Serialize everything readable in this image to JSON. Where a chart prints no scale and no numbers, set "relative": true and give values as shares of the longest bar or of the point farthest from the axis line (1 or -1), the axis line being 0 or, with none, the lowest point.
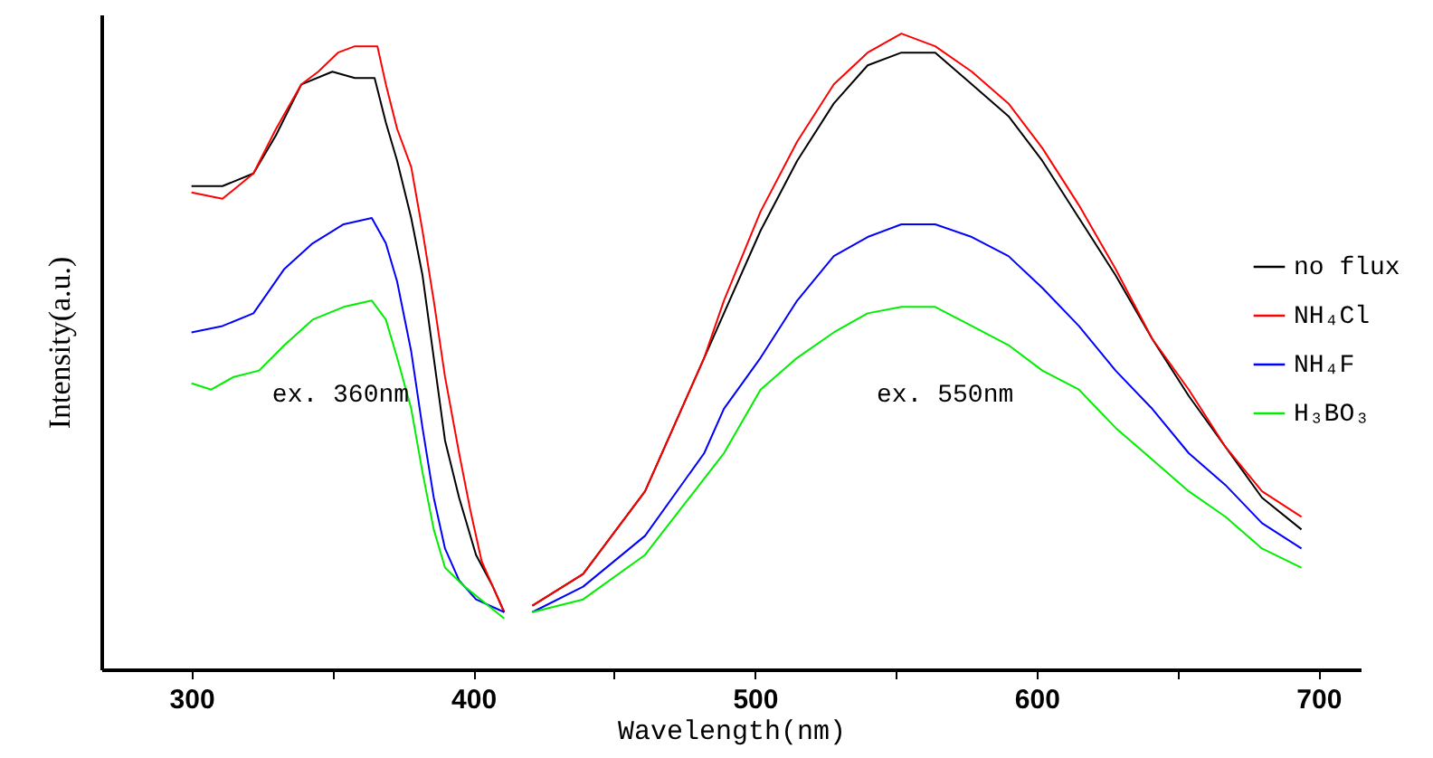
{
  "chart_data": {
    "type": "line",
    "relative": true,
    "xlabel": "Wavelength(nm)",
    "ylabel": "Intensity(a.u.)",
    "xlim": [
      268,
      715
    ],
    "xticks": [
      300,
      {
        "value": 350,
        "label": null
      },
      400,
      {
        "value": 450,
        "label": null
      },
      500,
      {
        "value": 550,
        "label": null
      },
      600,
      {
        "value": 650,
        "label": null
      },
      700
    ],
    "legend": "right",
    "grid": false,
    "marker": "none",
    "line_style": "solid",
    "annotations": [
      "ex. 360nm",
      "ex. 550nm"
    ],
    "series": [
      {
        "name": "no flux",
        "color": "#000000",
        "x": [
          300,
          311,
          322,
          330,
          339,
          350,
          358,
          365,
          369,
          373,
          378,
          382,
          386,
          390,
          395,
          401,
          407,
          411,
          416,
          421,
          439,
          461,
          482,
          489,
          502,
          515,
          528,
          540,
          552,
          564,
          577,
          590,
          602,
          615,
          628,
          641,
          654,
          667,
          680,
          694
        ],
        "values": [
          0.76,
          0.76,
          0.78,
          0.84,
          0.92,
          0.94,
          0.93,
          0.93,
          0.86,
          0.8,
          0.71,
          0.62,
          0.49,
          0.36,
          0.27,
          0.18,
          0.13,
          0.09,
          null,
          0.1,
          0.15,
          0.28,
          0.49,
          0.56,
          0.69,
          0.8,
          0.89,
          0.95,
          0.97,
          0.97,
          0.92,
          0.87,
          0.8,
          0.71,
          0.62,
          0.52,
          0.43,
          0.35,
          0.27,
          0.22
        ]
      },
      {
        "name": "NH₄Cl",
        "color": "#ff0000",
        "x": [
          300,
          311,
          322,
          330,
          339,
          345,
          352,
          358,
          366,
          369,
          373,
          378,
          382,
          386,
          390,
          395,
          399,
          403,
          407,
          411,
          416,
          421,
          439,
          461,
          482,
          489,
          502,
          515,
          528,
          540,
          552,
          564,
          577,
          590,
          602,
          615,
          628,
          641,
          654,
          667,
          680,
          694
        ],
        "values": [
          0.75,
          0.74,
          0.78,
          0.85,
          0.92,
          0.94,
          0.97,
          0.98,
          0.98,
          0.92,
          0.85,
          0.79,
          0.69,
          0.58,
          0.46,
          0.34,
          0.25,
          0.17,
          0.13,
          0.09,
          null,
          0.1,
          0.15,
          0.28,
          0.49,
          0.58,
          0.72,
          0.83,
          0.92,
          0.97,
          1,
          0.98,
          0.94,
          0.89,
          0.82,
          0.73,
          0.63,
          0.52,
          0.44,
          0.35,
          0.28,
          0.24
        ]
      },
      {
        "name": "NH₄F",
        "color": "#0000ff",
        "x": [
          300,
          311,
          322,
          333,
          343,
          354,
          364,
          369,
          373,
          378,
          382,
          386,
          390,
          395,
          401,
          411,
          416,
          421,
          439,
          461,
          482,
          489,
          502,
          515,
          528,
          540,
          552,
          564,
          577,
          590,
          602,
          615,
          628,
          641,
          654,
          667,
          680,
          694
        ],
        "values": [
          0.53,
          0.54,
          0.56,
          0.63,
          0.67,
          0.7,
          0.71,
          0.67,
          0.61,
          0.5,
          0.38,
          0.27,
          0.19,
          0.14,
          0.11,
          0.09,
          null,
          0.09,
          0.13,
          0.21,
          0.34,
          0.41,
          0.49,
          0.58,
          0.65,
          0.68,
          0.7,
          0.7,
          0.68,
          0.65,
          0.6,
          0.54,
          0.47,
          0.41,
          0.34,
          0.29,
          0.23,
          0.19
        ]
      },
      {
        "name": "H₃BO₃",
        "color": "#00ee00",
        "x": [
          300,
          307,
          315,
          324,
          333,
          343,
          354,
          364,
          369,
          373,
          378,
          382,
          386,
          390,
          397,
          411,
          416,
          421,
          439,
          461,
          482,
          489,
          502,
          515,
          528,
          540,
          552,
          564,
          577,
          590,
          602,
          615,
          628,
          641,
          654,
          667,
          680,
          694
        ],
        "values": [
          0.45,
          0.44,
          0.46,
          0.47,
          0.51,
          0.55,
          0.57,
          0.58,
          0.55,
          0.49,
          0.41,
          0.31,
          0.22,
          0.16,
          0.13,
          0.08,
          null,
          0.09,
          0.11,
          0.18,
          0.3,
          0.34,
          0.44,
          0.49,
          0.53,
          0.56,
          0.57,
          0.57,
          0.54,
          0.51,
          0.47,
          0.44,
          0.38,
          0.33,
          0.28,
          0.24,
          0.19,
          0.16
        ]
      }
    ]
  }
}
